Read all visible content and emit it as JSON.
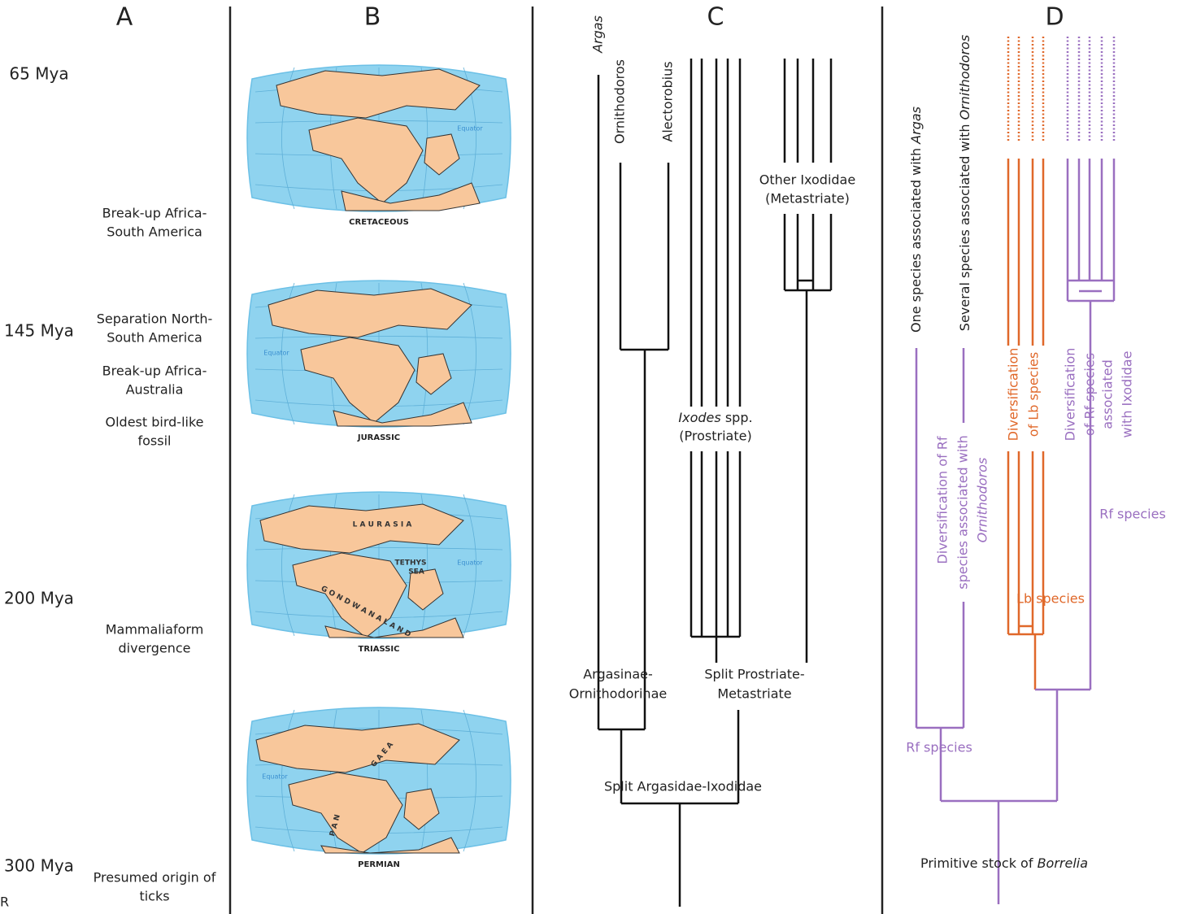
{
  "panels": [
    "A",
    "B",
    "C",
    "D"
  ],
  "timeline": [
    "65 Mya",
    "145 Mya",
    "200 Mya",
    "300 Mya"
  ],
  "events": [
    [
      "Break-up Africa-",
      "South America"
    ],
    [
      "Separation North-",
      "South America"
    ],
    [
      "Break-up Africa-",
      "Australia"
    ],
    [
      "Oldest bird-like",
      "fossil"
    ],
    [
      "Mammaliaform",
      "divergence"
    ],
    [
      "Presumed origin of",
      "ticks"
    ]
  ],
  "maps": [
    {
      "label": "CRETACEOUS",
      "texts": [
        "Equator"
      ]
    },
    {
      "label": "JURASSIC",
      "texts": [
        "Equator"
      ]
    },
    {
      "label": "TRIASSIC",
      "texts": [
        "L A U R A S I A",
        "TETHYS",
        "SEA",
        "Equator",
        "G O N D W A N A L A N D"
      ]
    },
    {
      "label": "PERMIAN",
      "texts": [
        "Equator",
        "P A N",
        "G A E A"
      ]
    }
  ],
  "tree_c": {
    "taxa": [
      "Argas",
      "Ornithodoros",
      "Alectorobius"
    ],
    "ixodes": {
      "italic": "Ixodes",
      "text": " spp."
    },
    "prostriate": "(Prostriate)",
    "metastriate_group": [
      "Other Ixodidae",
      "(Metastriate)"
    ],
    "nodes": [
      [
        "Argasinae-",
        "Ornithodorinae"
      ],
      [
        "Split Prostriate-",
        "Metastriate"
      ],
      [
        "Split Argasidae-Ixodidae"
      ]
    ]
  },
  "tree_d": {
    "argas": {
      "text": "One species associated with ",
      "italic": "Argas"
    },
    "ornithodoros": {
      "text": "Several species associated with ",
      "italic": "Ornithodoros"
    },
    "div_rf_orn": [
      "Diversification of Rf",
      "species associated with",
      "Ornithodoros"
    ],
    "div_lb": [
      "Diversification",
      "of Lb species"
    ],
    "div_rf_ix": [
      "Diversification",
      "of Rf species",
      "associated",
      "with Ixodidae"
    ],
    "lb": "Lb species",
    "rf_right": "Rf species",
    "rf_left": "Rf species",
    "root": {
      "text": "Primitive stock of ",
      "italic": "Borrelia"
    }
  },
  "logo": "R"
}
